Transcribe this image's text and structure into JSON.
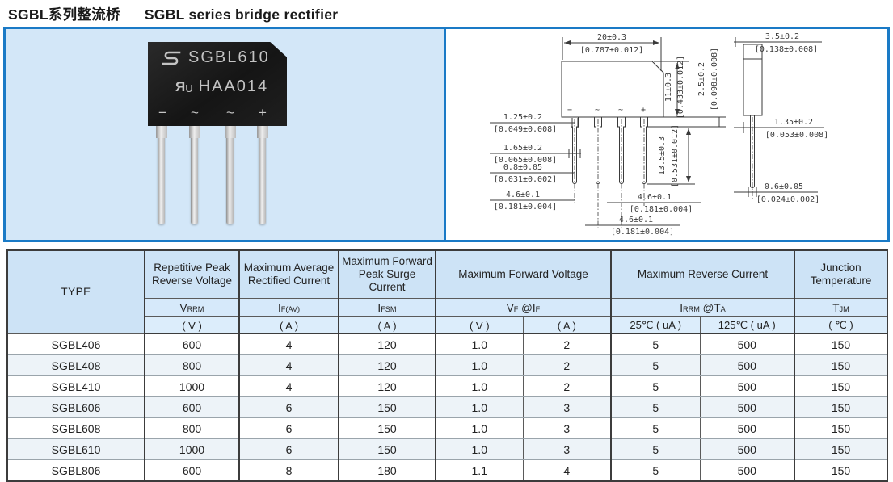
{
  "header": {
    "title_zh": "SGBL系列整流桥",
    "title_en": "SGBL series  bridge rectifier"
  },
  "photo": {
    "marking_line1": "SGBL610",
    "marking_line2": "HAA014",
    "ul_mark_r": "R",
    "ul_mark_u": "U",
    "terminal_marks": [
      "−",
      "~",
      "~",
      "+"
    ]
  },
  "drawing": {
    "front_view": {
      "terminal_marks": [
        "−",
        "~",
        "~",
        "+"
      ],
      "dim_width": {
        "mm": "20±0.3",
        "inch": "[0.787±0.012]"
      },
      "dim_body_height": {
        "mm": "11±0.3",
        "inch": "[0.433±0.012]"
      },
      "dim_standoff": {
        "mm": "2.5±0.2",
        "inch": "[0.098±0.008]"
      },
      "dim_lead_length": {
        "mm": "13.5±0.3",
        "inch": "[0.531±0.012]"
      },
      "dim_lead_tip": {
        "mm": "1.25±0.2",
        "inch": "[0.049±0.008]"
      },
      "dim_lead_shoulder": {
        "mm": "1.65±0.2",
        "inch": "[0.065±0.008]"
      },
      "dim_lead_thickness": {
        "mm": "0.8±0.05",
        "inch": "[0.031±0.002]"
      },
      "dim_pitch_left": {
        "mm": "4.6±0.1",
        "inch": "[0.181±0.004]"
      },
      "dim_pitch_right": {
        "mm": "4.6±0.1",
        "inch": "[0.181±0.004]"
      },
      "dim_pitch_center": {
        "mm": "4.6±0.1",
        "inch": "[0.181±0.004]"
      }
    },
    "side_view": {
      "dim_depth": {
        "mm": "3.5±0.2",
        "inch": "[0.138±0.008]"
      },
      "dim_lead_width": {
        "mm": "1.35±0.2",
        "inch": "[0.053±0.008]"
      },
      "dim_lead_thick": {
        "mm": "0.6±0.05",
        "inch": "[0.024±0.002]"
      }
    }
  },
  "table": {
    "type_label": "TYPE",
    "group_titles": [
      "Repetitive Peak Reverse Voltage",
      "Maximum Average Rectified Current",
      "Maximum Forward Peak Surge Current",
      "Maximum Forward Voltage",
      "Maximum Reverse Current",
      "Junction Temperature"
    ],
    "symbols": [
      {
        "main": "V",
        "sub": "RRM"
      },
      {
        "main": "I",
        "sub": "F(AV)"
      },
      {
        "main": "I",
        "sub": "FSM"
      },
      {
        "main": "V",
        "sub": "F",
        "main2": " @I",
        "sub2": "F"
      },
      {
        "main": "I",
        "sub": "RRM",
        "main2": " @T",
        "sub2": "A"
      },
      {
        "main": "T",
        "sub": "JM"
      }
    ],
    "units": [
      "( V )",
      "( A )",
      "( A )",
      "( V )",
      "( A )",
      "25℃ ( uA )",
      "125℃ ( uA )",
      "( ℃ )"
    ],
    "rows": [
      [
        "SGBL406",
        "600",
        "4",
        "120",
        "1.0",
        "2",
        "5",
        "500",
        "150"
      ],
      [
        "SGBL408",
        "800",
        "4",
        "120",
        "1.0",
        "2",
        "5",
        "500",
        "150"
      ],
      [
        "SGBL410",
        "1000",
        "4",
        "120",
        "1.0",
        "2",
        "5",
        "500",
        "150"
      ],
      [
        "SGBL606",
        "600",
        "6",
        "150",
        "1.0",
        "3",
        "5",
        "500",
        "150"
      ],
      [
        "SGBL608",
        "800",
        "6",
        "150",
        "1.0",
        "3",
        "5",
        "500",
        "150"
      ],
      [
        "SGBL610",
        "1000",
        "6",
        "150",
        "1.0",
        "3",
        "5",
        "500",
        "150"
      ],
      [
        "SGBL806",
        "600",
        "8",
        "180",
        "1.1",
        "4",
        "5",
        "500",
        "150"
      ]
    ],
    "group_start_rows": [
      3,
      6
    ]
  },
  "colors": {
    "panel_border": "#1a7ac6",
    "photo_background": "#d3e7f8",
    "header_fill": "#cde3f6",
    "alt_row_fill": "#edf3f8",
    "drawing_line": "#3a3a3a"
  }
}
